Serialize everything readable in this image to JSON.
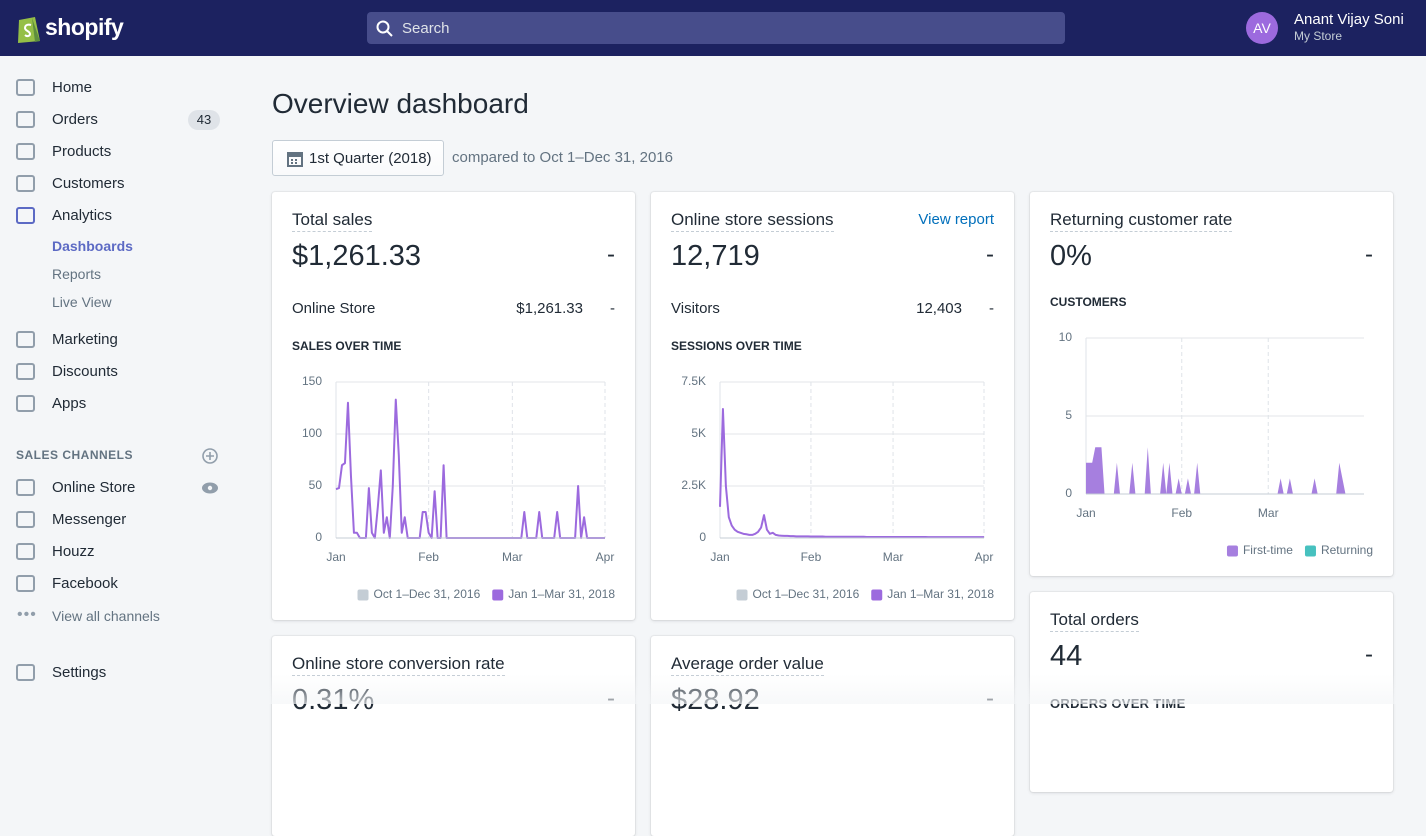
{
  "header": {
    "logo": "shopify",
    "search": "Search",
    "avatar": "AV",
    "user_name": "Anant Vijay Soni",
    "store": "My Store"
  },
  "nav": {
    "items": [
      {
        "label": "Home"
      },
      {
        "label": "Orders",
        "badge": 43
      },
      {
        "label": "Products"
      },
      {
        "label": "Customers"
      },
      {
        "label": "Analytics"
      }
    ],
    "analytics_sub": [
      "Dashboards",
      "Reports",
      "Live View"
    ],
    "more": [
      "Marketing",
      "Discounts",
      "Apps"
    ],
    "sales_channels_title": "SALES CHANNELS",
    "channels": [
      "Online Store",
      "Messenger",
      "Houzz",
      "Facebook"
    ],
    "view_all": "View all channels",
    "settings": "Settings"
  },
  "page": {
    "title": "Overview dashboard",
    "date_range": "1st Quarter (2018)",
    "comparison": "compared to Oct 1–Dec 31, 2016"
  },
  "cards": [
    {
      "title": "Total sales",
      "value": "$1,261.33",
      "change": "-",
      "row_label": "Online Store",
      "row_value": "$1,261.33",
      "row_change": "-"
    },
    {
      "title": "Online store sessions",
      "link": "View report",
      "value": "12,719",
      "change": "-",
      "row_label": "Visitors",
      "row_value": "12,403",
      "row_change": "-"
    },
    {
      "title": "Returning customer rate",
      "value": "0%",
      "change": "-"
    },
    {
      "title": "Total orders",
      "value": "44",
      "change": "-",
      "section": "ORDERS OVER TIME"
    },
    {
      "title": "Online store conversion rate",
      "value": "0.31%",
      "change": "-"
    },
    {
      "title": "Average order value",
      "value": "$28.92",
      "change": "-"
    }
  ],
  "chart_data": [
    {
      "type": "line",
      "title": "SALES OVER TIME",
      "categories": [
        "Jan",
        null,
        null,
        null,
        null,
        null,
        null,
        null,
        null,
        null,
        null,
        null,
        null,
        null,
        null,
        null,
        null,
        null,
        null,
        null,
        null,
        null,
        null,
        null,
        null,
        null,
        null,
        null,
        null,
        null,
        null,
        "Feb",
        null,
        null,
        null,
        null,
        null,
        null,
        null,
        null,
        null,
        null,
        null,
        null,
        null,
        null,
        null,
        null,
        null,
        null,
        null,
        null,
        null,
        null,
        null,
        null,
        null,
        null,
        null,
        "Mar",
        null,
        null,
        null,
        null,
        null,
        null,
        null,
        null,
        null,
        null,
        null,
        null,
        null,
        null,
        null,
        null,
        null,
        null,
        null,
        null,
        null,
        null,
        null,
        null,
        null,
        null,
        null,
        null,
        null,
        null,
        "Apr"
      ],
      "series": [
        {
          "name": "Oct 1–Dec 31, 2016",
          "color": "#c4cdd5",
          "values": [
            null,
            null,
            null,
            null,
            null,
            null,
            null,
            null,
            null,
            null,
            null,
            null,
            null,
            null,
            null,
            null,
            null,
            null,
            null,
            null,
            null,
            null,
            null,
            null,
            null,
            null,
            null,
            null,
            null,
            null,
            null,
            null,
            null,
            null,
            null,
            null,
            null,
            null,
            null,
            null,
            null,
            null,
            null,
            null,
            null,
            null,
            null,
            null,
            null,
            null,
            null,
            null,
            null,
            null,
            null,
            null,
            null,
            null,
            null,
            null,
            null,
            null,
            null,
            null,
            null,
            null,
            null,
            null,
            null,
            null,
            null,
            null,
            null,
            null,
            null,
            null,
            null,
            null,
            null,
            null,
            null,
            null,
            null,
            null,
            null,
            null,
            null,
            null,
            null,
            null,
            null
          ]
        },
        {
          "name": "Jan 1–Mar 31, 2018",
          "color": "#9c6ade",
          "values": [
            47,
            48,
            70,
            72,
            130,
            60,
            5,
            5,
            0,
            0,
            0,
            48,
            5,
            0,
            30,
            65,
            5,
            20,
            0,
            50,
            133,
            80,
            5,
            20,
            0,
            0,
            0,
            0,
            0,
            25,
            25,
            5,
            0,
            45,
            0,
            0,
            70,
            0,
            0,
            0,
            0,
            0,
            0,
            0,
            0,
            0,
            0,
            0,
            0,
            0,
            0,
            0,
            0,
            0,
            0,
            0,
            0,
            0,
            0,
            0,
            0,
            0,
            0,
            25,
            0,
            0,
            0,
            0,
            25,
            0,
            0,
            0,
            0,
            0,
            25,
            0,
            0,
            0,
            0,
            0,
            0,
            50,
            0,
            20,
            0,
            0,
            0,
            0,
            0,
            0,
            0
          ]
        }
      ],
      "ylim": [
        0,
        150
      ],
      "yticks": [
        0,
        50,
        100,
        150
      ],
      "grid": true
    },
    {
      "type": "line",
      "title": "SESSIONS OVER TIME",
      "categories": [
        "Jan",
        null,
        null,
        null,
        null,
        null,
        null,
        null,
        null,
        null,
        null,
        null,
        null,
        null,
        null,
        null,
        null,
        null,
        null,
        null,
        null,
        null,
        null,
        null,
        null,
        null,
        null,
        null,
        null,
        null,
        null,
        "Feb",
        null,
        null,
        null,
        null,
        null,
        null,
        null,
        null,
        null,
        null,
        null,
        null,
        null,
        null,
        null,
        null,
        null,
        null,
        null,
        null,
        null,
        null,
        null,
        null,
        null,
        null,
        null,
        "Mar",
        null,
        null,
        null,
        null,
        null,
        null,
        null,
        null,
        null,
        null,
        null,
        null,
        null,
        null,
        null,
        null,
        null,
        null,
        null,
        null,
        null,
        null,
        null,
        null,
        null,
        null,
        null,
        null,
        null,
        null,
        "Apr"
      ],
      "series": [
        {
          "name": "Oct 1–Dec 31, 2016",
          "color": "#c4cdd5",
          "values": [
            null,
            null,
            null,
            null,
            null,
            null,
            null,
            null,
            null,
            null,
            null,
            null,
            null,
            null,
            null,
            null,
            null,
            null,
            null,
            null,
            null,
            null,
            null,
            null,
            null,
            null,
            null,
            null,
            null,
            null,
            null,
            null,
            null,
            null,
            null,
            null,
            null,
            null,
            null,
            null,
            null,
            null,
            null,
            null,
            null,
            null,
            null,
            null,
            null,
            null,
            null,
            null,
            null,
            null,
            null,
            null,
            null,
            null,
            null,
            null,
            null,
            null,
            null,
            null,
            null,
            null,
            null,
            null,
            null,
            null,
            null,
            null,
            null,
            null,
            null,
            null,
            null,
            null,
            null,
            null,
            null,
            null,
            null,
            null,
            null,
            null,
            null,
            null,
            null,
            null,
            null
          ]
        },
        {
          "name": "Jan 1–Mar 31, 2018",
          "color": "#9c6ade",
          "values": [
            1500,
            6200,
            2500,
            1000,
            600,
            400,
            300,
            250,
            200,
            180,
            150,
            150,
            200,
            300,
            500,
            1100,
            400,
            200,
            250,
            150,
            120,
            110,
            100,
            100,
            90,
            90,
            80,
            80,
            80,
            80,
            80,
            70,
            70,
            70,
            70,
            70,
            60,
            60,
            60,
            60,
            60,
            60,
            60,
            60,
            60,
            60,
            60,
            60,
            60,
            60,
            50,
            50,
            50,
            50,
            50,
            50,
            50,
            50,
            50,
            50,
            50,
            50,
            50,
            50,
            50,
            50,
            50,
            50,
            50,
            50,
            50,
            40,
            40,
            40,
            40,
            40,
            40,
            40,
            40,
            40,
            40,
            40,
            40,
            40,
            40,
            40,
            40,
            40,
            40,
            40,
            40
          ]
        }
      ],
      "ylim": [
        0,
        7500
      ],
      "yticks": [
        0,
        {
          "value": 2500,
          "label": "2.5K"
        },
        {
          "value": 5000,
          "label": "5K"
        },
        {
          "value": 7500,
          "label": "7.5K"
        }
      ],
      "grid": true
    },
    {
      "type": "area",
      "title": "CUSTOMERS",
      "categories": [
        "Jan",
        null,
        null,
        null,
        null,
        null,
        null,
        null,
        null,
        null,
        null,
        null,
        null,
        null,
        null,
        null,
        null,
        null,
        null,
        null,
        null,
        null,
        null,
        null,
        null,
        null,
        null,
        null,
        null,
        null,
        null,
        "Feb",
        null,
        null,
        null,
        null,
        null,
        null,
        null,
        null,
        null,
        null,
        null,
        null,
        null,
        null,
        null,
        null,
        null,
        null,
        null,
        null,
        null,
        null,
        null,
        null,
        null,
        null,
        null,
        "Mar",
        null,
        null,
        null,
        null,
        null,
        null,
        null,
        null,
        null,
        null,
        null,
        null,
        null,
        null,
        null,
        null,
        null,
        null,
        null,
        null,
        null,
        null,
        null,
        null,
        null,
        null,
        null,
        null,
        null,
        null,
        null
      ],
      "series": [
        {
          "name": "First-time",
          "color": "#a67fdf",
          "values": [
            2,
            2,
            2,
            3,
            3,
            3,
            0,
            0,
            0,
            0,
            2,
            0,
            0,
            0,
            0,
            2,
            0,
            0,
            0,
            0,
            3,
            0,
            0,
            0,
            0,
            2,
            0,
            2,
            0,
            0,
            1,
            0,
            0,
            1,
            0,
            0,
            2,
            0,
            0,
            0,
            0,
            0,
            0,
            0,
            0,
            0,
            0,
            0,
            0,
            0,
            0,
            0,
            0,
            0,
            0,
            0,
            0,
            0,
            0,
            0,
            0,
            0,
            0,
            1,
            0,
            0,
            1,
            0,
            0,
            0,
            0,
            0,
            0,
            0,
            1,
            0,
            0,
            0,
            0,
            0,
            0,
            0,
            2,
            1,
            0,
            0,
            0,
            0,
            0,
            0,
            0
          ]
        },
        {
          "name": "Returning",
          "color": "#47c1bf",
          "values": [
            0,
            0,
            0,
            0,
            0,
            0,
            0,
            0,
            0,
            0,
            0,
            0,
            0,
            0,
            0,
            0,
            0,
            0,
            0,
            0,
            0,
            0,
            0,
            0,
            0,
            0,
            0,
            0,
            0,
            0,
            0,
            0,
            0,
            0,
            0,
            0,
            0,
            0,
            0,
            0,
            0,
            0,
            0,
            0,
            0,
            0,
            0,
            0,
            0,
            0,
            0,
            0,
            0,
            0,
            0,
            0,
            0,
            0,
            0,
            0,
            0,
            0,
            0,
            0,
            0,
            0,
            0,
            0,
            0,
            0,
            0,
            0,
            0,
            0,
            0,
            0,
            0,
            0,
            0,
            0,
            0,
            0,
            0,
            0,
            0,
            0,
            0,
            0,
            0,
            0,
            0
          ]
        }
      ],
      "ylim": [
        0,
        10
      ],
      "yticks": [
        0,
        5,
        10
      ],
      "grid": true
    }
  ]
}
